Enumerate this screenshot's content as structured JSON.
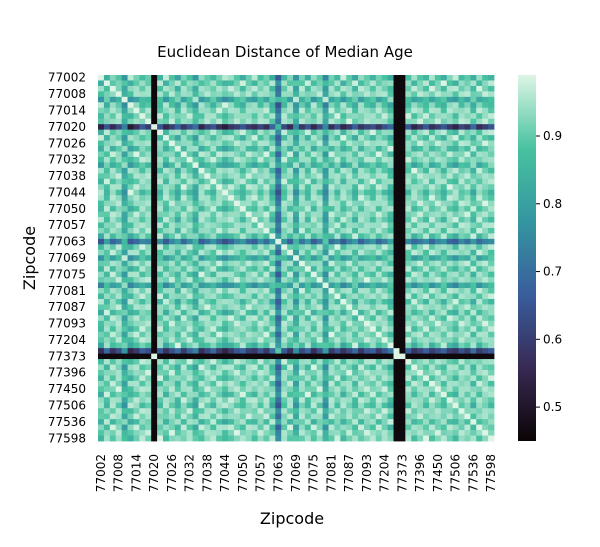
{
  "chart_data": {
    "type": "heatmap",
    "title": "Euclidean Distance of Median Age",
    "xlabel": "Zipcode",
    "ylabel": "Zipcode",
    "tick_labels": [
      "77002",
      "77008",
      "77014",
      "77020",
      "77026",
      "77032",
      "77038",
      "77044",
      "77050",
      "77057",
      "77063",
      "77069",
      "77075",
      "77081",
      "77087",
      "77093",
      "77204",
      "77373",
      "77396",
      "77450",
      "77506",
      "77536",
      "77598"
    ],
    "matrix_size": 67,
    "tick_every": 3,
    "value_range": [
      0.45,
      0.99
    ],
    "colorbar": {
      "ticks": [
        0.5,
        0.6,
        0.7,
        0.8,
        0.9
      ],
      "tick_labels": [
        "0.5",
        "0.6",
        "0.7",
        "0.8",
        "0.9"
      ],
      "colormap": "mako",
      "stops": [
        "#0b0405",
        "#382a54",
        "#395d9c",
        "#3496a0",
        "#48c2a0",
        "#def5e5"
      ]
    },
    "row_factors": [
      0.97,
      0.86,
      0.94,
      0.9,
      0.8,
      0.97,
      0.93,
      0.88,
      0.91,
      0.6,
      0.87,
      0.96,
      0.9,
      0.84,
      0.93,
      0.88,
      0.82,
      0.95,
      0.91,
      0.87,
      0.93,
      0.97,
      0.94,
      0.9,
      0.86,
      0.92,
      0.95,
      0.89,
      0.93,
      0.85,
      0.7,
      0.88,
      0.94,
      0.8,
      0.92,
      0.86,
      0.95,
      0.9,
      0.78,
      0.93,
      0.88,
      0.96,
      0.91,
      0.85,
      0.94,
      0.9,
      0.87,
      0.93,
      0.89,
      0.84,
      0.62,
      0.5,
      0.88,
      0.95,
      0.91,
      0.87,
      0.94,
      0.9,
      0.86,
      0.93,
      0.96,
      0.89,
      0.92,
      0.85,
      0.94,
      0.9,
      0.87
    ],
    "dark_columns": [
      9,
      50,
      51
    ],
    "dark_rows": [
      51
    ]
  }
}
